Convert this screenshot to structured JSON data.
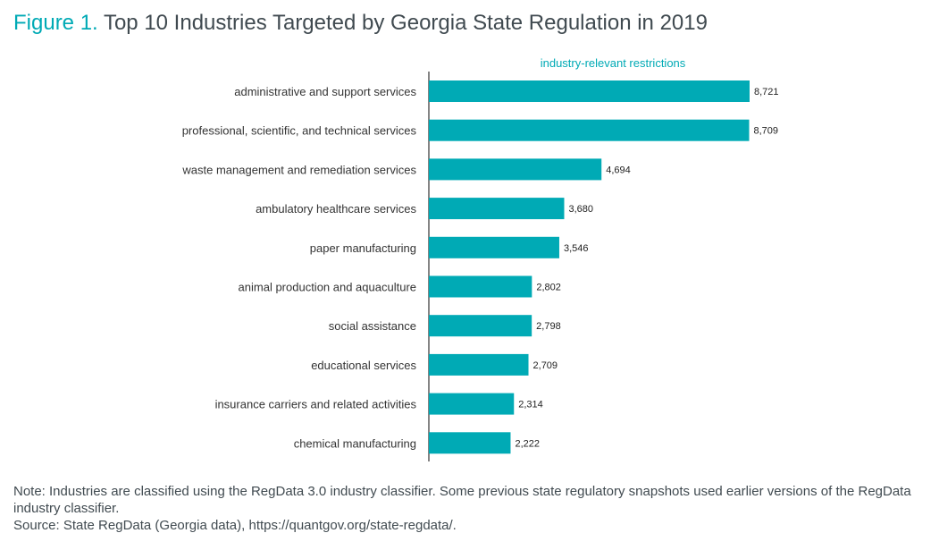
{
  "title": {
    "figure_label": "Figure 1.",
    "text": "Top 10 Industries Targeted by Georgia State Regulation in 2019"
  },
  "chart_data": {
    "type": "bar",
    "orientation": "horizontal",
    "title": "Top 10 Industries Targeted by Georgia State Regulation in 2019",
    "series": [
      {
        "name": "industry-relevant restrictions",
        "values": [
          8721,
          8709,
          4694,
          3680,
          3546,
          2802,
          2798,
          2709,
          2314,
          2222
        ]
      }
    ],
    "categories": [
      "administrative and support services",
      "professional, scientific, and technical services",
      "waste management and remediation services",
      "ambulatory healthcare services",
      "paper manufacturing",
      "animal production and aquaculture",
      "social assistance",
      "educational services",
      "insurance carriers and related activities",
      "chemical manufacturing"
    ],
    "data_labels": [
      "8,721",
      "8,709",
      "4,694",
      "3,680",
      "3,546",
      "2,802",
      "2,798",
      "2,709",
      "2,314",
      "2,222"
    ],
    "xlim": [
      0,
      8721
    ],
    "bar_color": "#00aab5",
    "grid": false,
    "legend": "top, above bars"
  },
  "notes": {
    "note": "Note: Industries are classified using the RegData 3.0 industry classifier. Some previous state regulatory snapshots used earlier versions of the RegData industry classifier.",
    "source": "Source: State RegData (Georgia data), https://quantgov.org/state-regdata/."
  }
}
